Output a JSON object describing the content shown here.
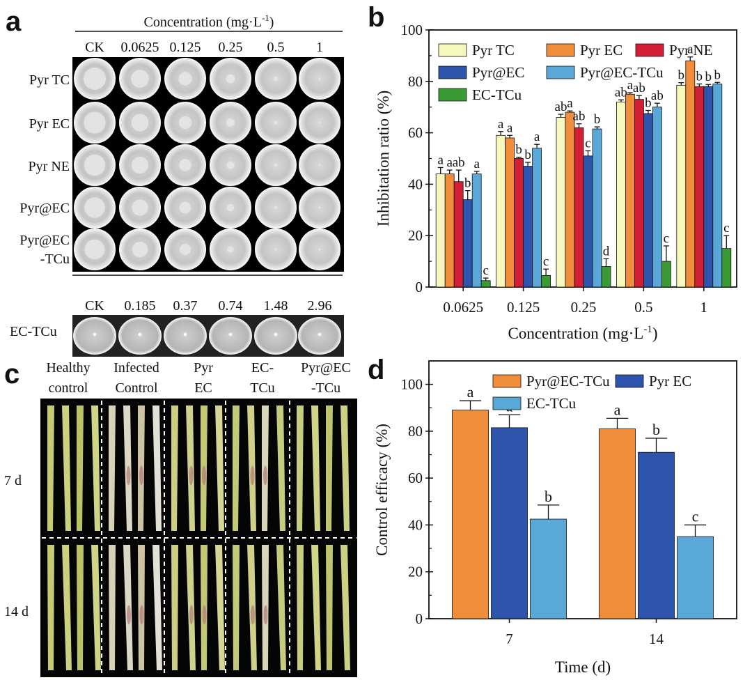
{
  "panels": {
    "a": {
      "letter": "a",
      "header": "Concentration (mg·L",
      "header_sup": "-1",
      "header_tail": ")",
      "columns": [
        "CK",
        "0.0625",
        "0.125",
        "0.25",
        "0.5",
        "1"
      ],
      "rows": [
        "Pyr TC",
        "Pyr EC",
        "Pyr NE",
        "Pyr@EC",
        "Pyr@EC",
        "-TCu"
      ],
      "ectcu_columns": [
        "CK",
        "0.185",
        "0.37",
        "0.74",
        "1.48",
        "2.96"
      ],
      "ectcu_label": "EC-TCu"
    },
    "b": {
      "letter": "b"
    },
    "c": {
      "letter": "c",
      "headers": [
        [
          "Healthy",
          "control"
        ],
        [
          "Infected",
          "Control"
        ],
        [
          "Pyr",
          "EC"
        ],
        [
          "EC-",
          "TCu"
        ],
        [
          "Pyr@EC",
          "-TCu"
        ]
      ],
      "times": [
        "7 d",
        "14 d"
      ]
    },
    "d": {
      "letter": "d"
    }
  },
  "colors": {
    "pyr_tc": "#f6f8be",
    "pyr_ec": "#f08e3c",
    "pyr_ne": "#d21f35",
    "pyr_at_ec": "#2c55ab",
    "pyr_at_ec_tcu": "#5aa8d8",
    "ec_tcu": "#3a9a33"
  },
  "chart_data": [
    {
      "id": "b",
      "type": "bar",
      "categories": [
        "0.0625",
        "0.125",
        "0.25",
        "0.5",
        "1"
      ],
      "xlabel": "Concentration (mg·L",
      "xlabel_sup": "-1",
      "xlabel_tail": ")",
      "ylabel": "Inhibitation ratio (%)",
      "ylim": [
        0,
        100
      ],
      "yticks": [
        "0",
        "20",
        "40",
        "60",
        "80",
        "100"
      ],
      "legend_position": "top",
      "series": [
        {
          "name": "Pyr TC",
          "color_key": "pyr_tc",
          "values": [
            44,
            59,
            66,
            72,
            78.5
          ],
          "errors": [
            2.5,
            1.5,
            1.2,
            0.8,
            1.0
          ],
          "letters": [
            "a",
            "a",
            "ab",
            "ab",
            "b"
          ]
        },
        {
          "name": "Pyr EC",
          "color_key": "pyr_ec",
          "values": [
            44,
            58,
            68,
            75,
            88
          ],
          "errors": [
            1.5,
            1.0,
            0.5,
            0.6,
            1.5
          ],
          "letters": [
            "a",
            "a",
            "a",
            "a",
            "a"
          ]
        },
        {
          "name": "Pyr NE",
          "color_key": "pyr_ne",
          "values": [
            41,
            50,
            62,
            73,
            78
          ],
          "errors": [
            4.5,
            0.5,
            1.5,
            1.5,
            1.0
          ],
          "letters": [
            "ab",
            "b",
            "ab",
            "ab",
            "b"
          ]
        },
        {
          "name": "Pyr@EC",
          "color_key": "pyr_at_ec",
          "values": [
            34,
            47,
            51,
            67.5,
            78
          ],
          "errors": [
            3.5,
            1.5,
            2.0,
            1.2,
            0.8
          ],
          "letters": [
            "b",
            "b",
            "c",
            "b",
            "b"
          ]
        },
        {
          "name": "Pyr@EC-TCu",
          "color_key": "pyr_at_ec_tcu",
          "values": [
            44,
            54,
            61.5,
            70,
            79
          ],
          "errors": [
            1.0,
            1.5,
            0.8,
            1.5,
            0.6
          ],
          "letters": [
            "a",
            "a",
            "b",
            "ab",
            "b"
          ]
        },
        {
          "name": "EC-TCu",
          "color_key": "ec_tcu",
          "values": [
            2.5,
            4.5,
            8,
            10,
            15
          ],
          "errors": [
            1.0,
            2.5,
            3.0,
            6.0,
            5.0
          ],
          "letters": [
            "c",
            "c",
            "d",
            "c",
            "c"
          ]
        }
      ]
    },
    {
      "id": "d",
      "type": "bar",
      "categories": [
        "7",
        "14"
      ],
      "xlabel": "Time (d)",
      "ylabel": "Control efficacy (%)",
      "ylim": [
        0,
        110
      ],
      "yticks": [
        "0",
        "20",
        "40",
        "60",
        "80",
        "100"
      ],
      "legend_position": "top",
      "series": [
        {
          "name": "Pyr@EC-TCu",
          "color_key": "pyr_ec",
          "values": [
            89,
            81
          ],
          "errors": [
            4,
            4.5
          ],
          "letters": [
            "a",
            "a"
          ]
        },
        {
          "name": "Pyr EC",
          "color_key": "pyr_at_ec",
          "values": [
            81.5,
            71
          ],
          "errors": [
            5.5,
            6
          ],
          "letters": [
            "a",
            "b"
          ]
        },
        {
          "name": "EC-TCu",
          "color_key": "pyr_at_ec_tcu",
          "values": [
            42.5,
            35
          ],
          "errors": [
            6,
            5
          ],
          "letters": [
            "b",
            "c"
          ]
        }
      ]
    }
  ]
}
